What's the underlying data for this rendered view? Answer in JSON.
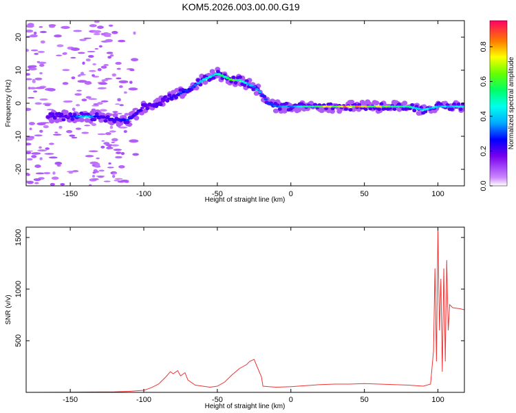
{
  "title": "KOM5.2026.003.00.00.G19",
  "chart_data": [
    {
      "type": "heatmap",
      "name": "spectrogram",
      "xlabel": "Height of straight line (km)",
      "ylabel": "Frequency (Hz)",
      "xlim": [
        -180,
        118
      ],
      "ylim": [
        -25,
        25
      ],
      "xticks": [
        -150,
        -100,
        -50,
        0,
        50,
        100
      ],
      "yticks": [
        -20,
        -10,
        0,
        10,
        20
      ],
      "colorbar": {
        "label": "Normalized spectral amplitude",
        "range": [
          0.0,
          0.95
        ],
        "ticks": [
          0.0,
          0.2,
          0.4,
          0.6,
          0.8
        ]
      },
      "ridge": {
        "x": [
          -165,
          -150,
          -140,
          -130,
          -120,
          -110,
          -100,
          -90,
          -80,
          -70,
          -60,
          -50,
          -45,
          -40,
          -35,
          -30,
          -25,
          -20,
          -15,
          -10,
          -5,
          0,
          10,
          20,
          40,
          60,
          80,
          90,
          100,
          110,
          118
        ],
        "y": [
          -4,
          -4,
          -4,
          -4,
          -5,
          -5,
          -1,
          0,
          2,
          4,
          7,
          9,
          8,
          7,
          7,
          6,
          5,
          3,
          0,
          -1,
          -1,
          -1,
          -1,
          -1,
          -1,
          -1,
          -1,
          -2,
          -1,
          -1,
          -1
        ],
        "amplitude": [
          0.2,
          0.2,
          0.45,
          0.2,
          0.25,
          0.3,
          0.2,
          0.2,
          0.25,
          0.3,
          0.4,
          0.5,
          0.55,
          0.6,
          0.5,
          0.4,
          0.4,
          0.35,
          0.3,
          0.3,
          0.35,
          0.4,
          0.5,
          0.7,
          0.8,
          0.7,
          0.5,
          0.45,
          0.4,
          0.45,
          0.4
        ]
      }
    },
    {
      "type": "line",
      "name": "snr",
      "xlabel": "Height of straight line (km)",
      "ylabel": "SNR (v/v)",
      "xlim": [
        -180,
        118
      ],
      "ylim": [
        0,
        1600
      ],
      "xticks": [
        -150,
        -100,
        -50,
        0,
        50,
        100
      ],
      "yticks": [
        500,
        1000,
        1500
      ],
      "color": "#ee3333",
      "series": [
        {
          "name": "SNR",
          "x": [
            -180,
            -150,
            -120,
            -110,
            -100,
            -95,
            -90,
            -85,
            -82,
            -80,
            -77,
            -75,
            -72,
            -70,
            -65,
            -60,
            -55,
            -50,
            -45,
            -40,
            -35,
            -30,
            -28,
            -25,
            -23,
            -20,
            -19,
            -15,
            -10,
            0,
            10,
            20,
            30,
            40,
            50,
            60,
            70,
            80,
            90,
            95,
            97,
            98,
            99,
            100,
            101,
            102,
            103,
            104,
            105,
            106,
            107,
            108,
            110,
            115,
            118
          ],
          "y": [
            0,
            2,
            5,
            10,
            20,
            45,
            80,
            150,
            200,
            180,
            210,
            160,
            190,
            120,
            70,
            60,
            50,
            60,
            100,
            170,
            230,
            270,
            300,
            320,
            250,
            150,
            60,
            55,
            50,
            55,
            65,
            75,
            80,
            80,
            85,
            80,
            75,
            70,
            60,
            80,
            400,
            1200,
            300,
            1600,
            600,
            1100,
            200,
            1200,
            300,
            1280,
            600,
            850,
            820,
            810,
            800
          ]
        }
      ]
    }
  ]
}
